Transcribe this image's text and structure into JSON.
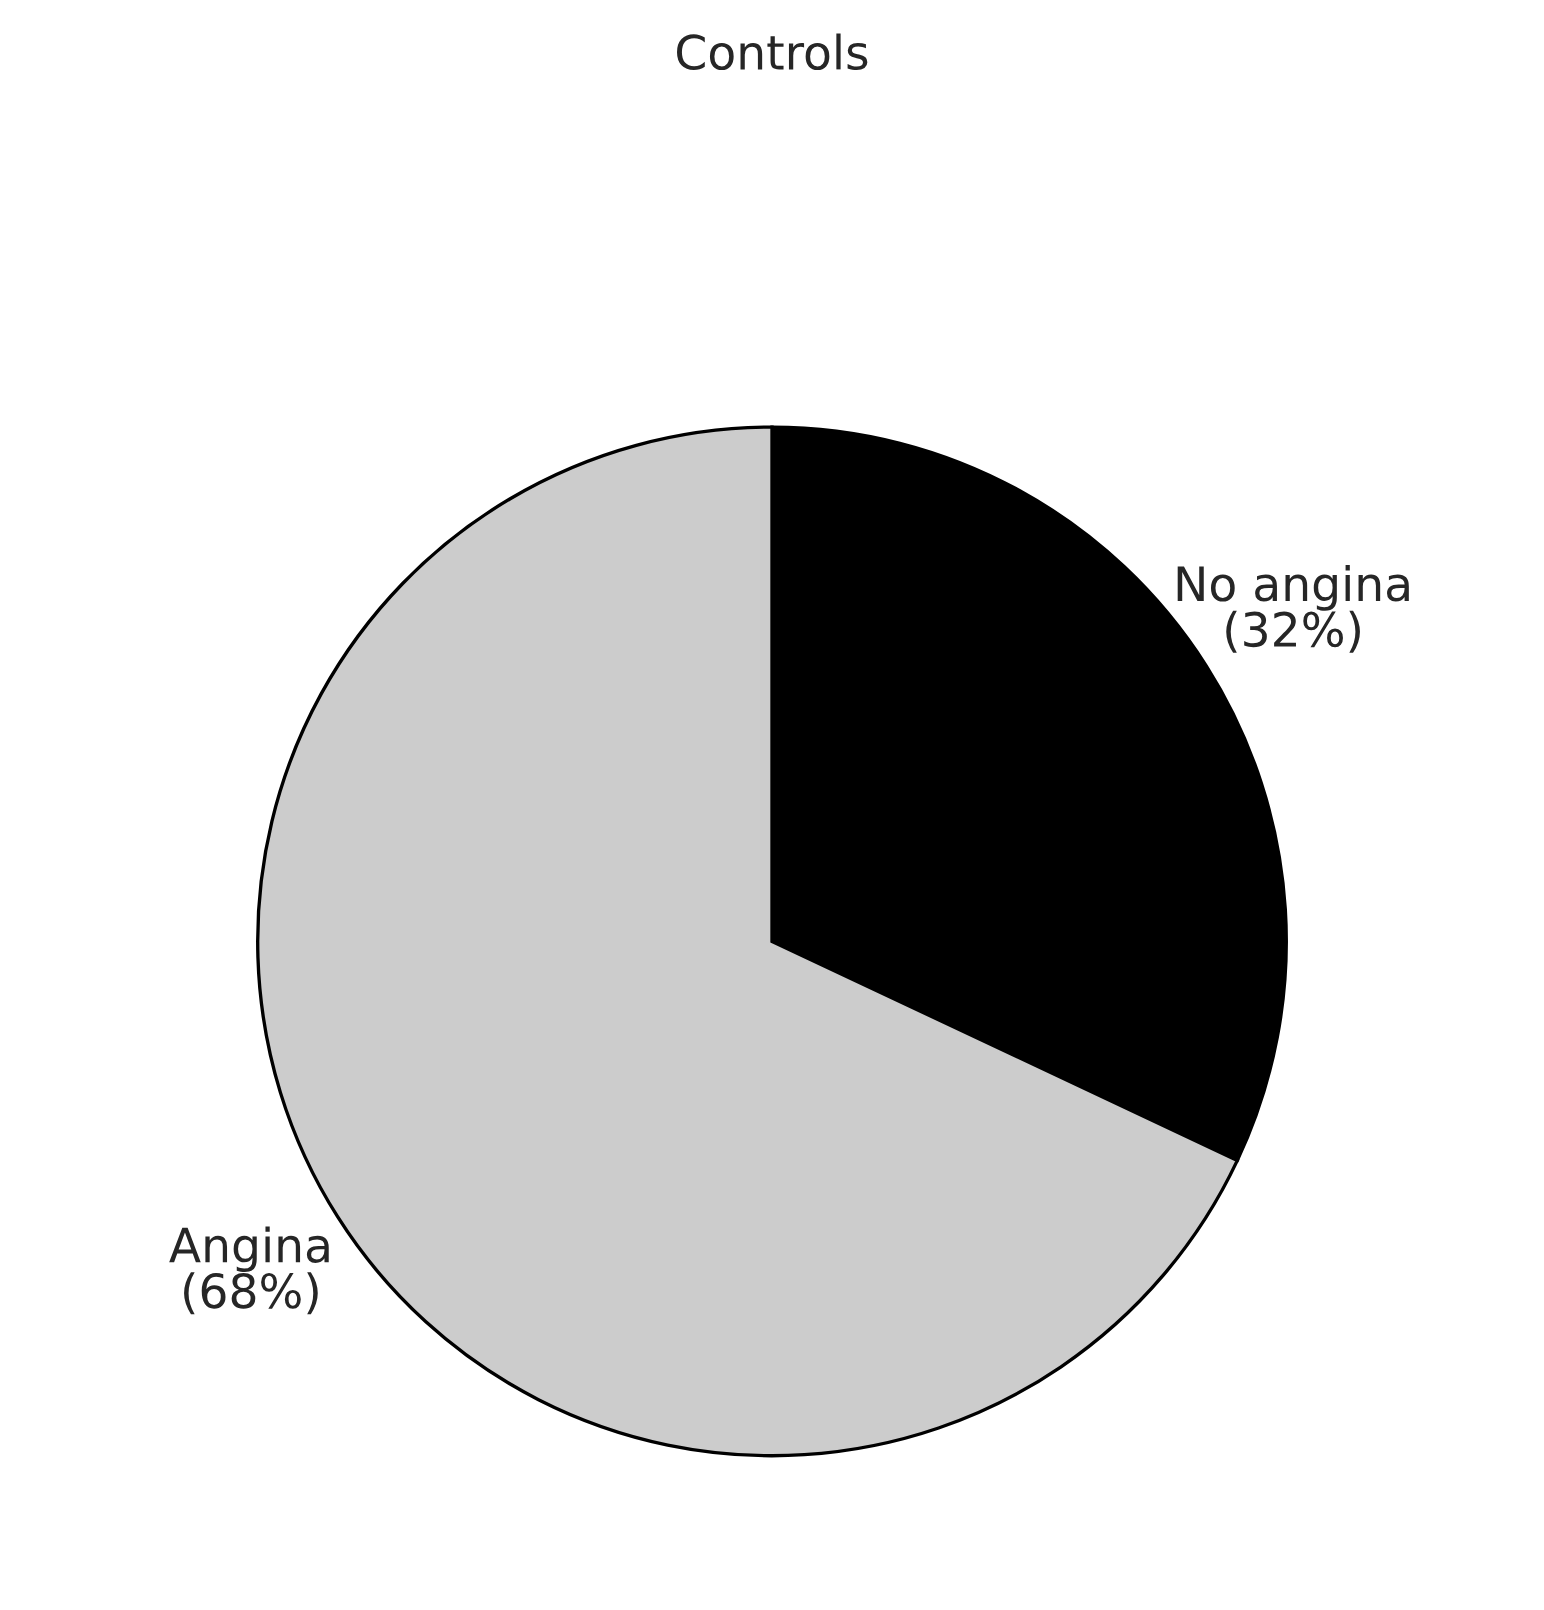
{
  "chart_data": {
    "type": "pie",
    "title": "Controls",
    "categories": [
      "No angina",
      "Angina"
    ],
    "values": [
      32,
      68
    ],
    "colors": [
      "#000000",
      "#cccccc"
    ],
    "value_labels": [
      "(32%)",
      "(68%)"
    ]
  }
}
